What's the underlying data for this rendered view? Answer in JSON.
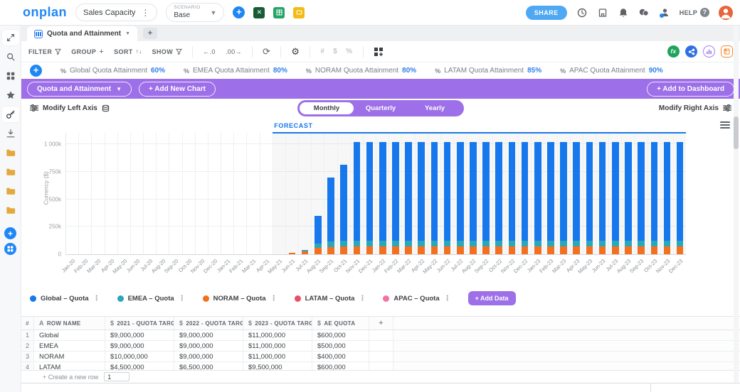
{
  "colors": {
    "accent_purple": "#9d6fe8",
    "accent_blue": "#1f87f5",
    "kpi_value_blue": "#2f80ed",
    "forecast_blue": "#1678ec",
    "share_blue": "#4fa8f2",
    "avatar_orange": "#e8643c",
    "folder_yellow": "#e3a93c"
  },
  "header": {
    "logo": "onplan",
    "module_name": "Sales Capacity",
    "scenario_label": "SCENARIO",
    "scenario_value": "Base",
    "share_label": "SHARE",
    "help_label": "HELP",
    "icons": [
      "add",
      "excel",
      "sheets",
      "slides",
      "history",
      "marketplace",
      "bell",
      "chat",
      "whats-new",
      "help",
      "avatar"
    ]
  },
  "sidebar": {
    "items": [
      {
        "icon": "expand",
        "active": true
      },
      {
        "icon": "search",
        "active": false
      },
      {
        "icon": "dashboard",
        "active": false
      },
      {
        "icon": "star",
        "active": false
      },
      {
        "icon": "key",
        "active": true
      },
      {
        "icon": "download",
        "active": false
      },
      {
        "icon": "folder",
        "active": false
      },
      {
        "icon": "folder",
        "active": false
      },
      {
        "icon": "folder",
        "active": false
      },
      {
        "icon": "folder",
        "active": false
      },
      {
        "icon": "add-circle",
        "active": false
      },
      {
        "icon": "apps-circle",
        "active": false
      }
    ]
  },
  "tabs": {
    "active": "Quota and Attainment",
    "add_label": "+"
  },
  "toolbar": {
    "filter": "FILTER",
    "group": "GROUP",
    "sort": "SORT",
    "show": "SHOW",
    "decimal_decrease": "←.0",
    "decimal_increase": ".00→",
    "disabled_formats": [
      "#",
      "$",
      "%"
    ],
    "right_icons": [
      "fx",
      "integrations",
      "chart",
      "pivot"
    ]
  },
  "kpis": [
    {
      "icon": "%",
      "label": "Global Quota Attainment",
      "value": "60%"
    },
    {
      "icon": "%",
      "label": "EMEA Quota Attainment",
      "value": "80%"
    },
    {
      "icon": "%",
      "label": "NORAM Quota Attainment",
      "value": "80%"
    },
    {
      "icon": "%",
      "label": "LATAM Quota Attainment",
      "value": "85%"
    },
    {
      "icon": "%",
      "label": "APAC Quota Attainment",
      "value": "90%"
    }
  ],
  "chart_bar": {
    "selector_label": "Quota and Attainment",
    "add_chart_label": "+ Add New Chart",
    "add_dashboard_label": "+ Add to Dashboard"
  },
  "axis_controls": {
    "left_label": "Modify Left Axis",
    "right_label": "Modify Right Axis",
    "period_options": [
      "Monthly",
      "Quarterly",
      "Yearly"
    ],
    "period_selected": "Monthly"
  },
  "chart_data": {
    "type": "bar",
    "stacked": true,
    "forecast_label": "FORECAST",
    "forecast_start_index": 16,
    "ylabel": "Currency ($)",
    "ylim": [
      0,
      1050
    ],
    "yticks": {
      "values": [
        0,
        250,
        500,
        750,
        1000
      ],
      "labels": [
        "0",
        "250k",
        "500k",
        "750k",
        "1 000k"
      ]
    },
    "unit": "thousands of $",
    "categories": [
      "Jan-20",
      "Feb-20",
      "Mar-20",
      "Apr-20",
      "May-20",
      "Jun-20",
      "Jul-20",
      "Aug-20",
      "Sep-20",
      "Oct-20",
      "Nov-20",
      "Dec-20",
      "Jan-21",
      "Feb-21",
      "Mar-21",
      "Apr-21",
      "May-21",
      "Jun-21",
      "Jul-21",
      "Aug-21",
      "Sep-21",
      "Oct-21",
      "Nov-21",
      "Dec-21",
      "Jan-22",
      "Feb-22",
      "Mar-22",
      "Apr-22",
      "May-22",
      "Jun-22",
      "Jul-22",
      "Aug-22",
      "Sep-22",
      "Oct-22",
      "Nov-22",
      "Dec-22",
      "Jan-23",
      "Feb-23",
      "Mar-23",
      "Apr-23",
      "May-23",
      "Jun-23",
      "Jul-23",
      "Aug-23",
      "Sep-23",
      "Oct-23",
      "Nov-23",
      "Dec-23"
    ],
    "series": [
      {
        "name": "Global – Quota",
        "color": "#1678ec",
        "values": [
          0,
          0,
          0,
          0,
          0,
          0,
          0,
          0,
          0,
          0,
          0,
          0,
          0,
          0,
          0,
          0,
          0,
          0,
          0,
          250,
          585,
          690,
          895,
          895,
          895,
          895,
          895,
          895,
          895,
          895,
          895,
          895,
          895,
          895,
          895,
          895,
          895,
          895,
          895,
          895,
          895,
          895,
          895,
          895,
          895,
          895,
          895,
          895
        ]
      },
      {
        "name": "EMEA – Quota",
        "color": "#2aa7ba",
        "values": [
          0,
          0,
          0,
          0,
          0,
          0,
          0,
          0,
          0,
          0,
          0,
          0,
          0,
          0,
          0,
          0,
          0,
          0,
          15,
          45,
          50,
          55,
          55,
          55,
          55,
          55,
          55,
          55,
          55,
          55,
          55,
          55,
          55,
          55,
          55,
          55,
          55,
          55,
          55,
          55,
          55,
          55,
          55,
          55,
          55,
          55,
          55,
          55
        ]
      },
      {
        "name": "NORAM – Quota",
        "color": "#f4701e",
        "values": [
          0,
          0,
          0,
          0,
          0,
          0,
          0,
          0,
          0,
          0,
          0,
          0,
          0,
          0,
          0,
          0,
          0,
          15,
          25,
          55,
          65,
          70,
          70,
          70,
          70,
          70,
          70,
          70,
          70,
          70,
          70,
          70,
          70,
          70,
          70,
          70,
          70,
          70,
          70,
          70,
          70,
          70,
          70,
          70,
          70,
          70,
          70,
          70
        ]
      },
      {
        "name": "LATAM – Quota",
        "color": "#e94f66",
        "values": [
          0,
          0,
          0,
          0,
          0,
          0,
          0,
          0,
          0,
          0,
          0,
          0,
          0,
          0,
          0,
          0,
          0,
          0,
          0,
          0,
          0,
          0,
          0,
          0,
          0,
          0,
          0,
          0,
          0,
          0,
          0,
          0,
          0,
          0,
          0,
          0,
          0,
          0,
          0,
          0,
          0,
          0,
          0,
          0,
          0,
          0,
          0,
          0
        ]
      },
      {
        "name": "APAC – Quota",
        "color": "#f272a3",
        "values": [
          0,
          0,
          0,
          0,
          0,
          0,
          0,
          0,
          0,
          0,
          0,
          0,
          0,
          0,
          0,
          0,
          0,
          0,
          0,
          0,
          0,
          0,
          0,
          0,
          0,
          0,
          0,
          0,
          0,
          0,
          0,
          0,
          0,
          0,
          0,
          0,
          0,
          0,
          0,
          0,
          0,
          0,
          0,
          0,
          0,
          0,
          0,
          0
        ]
      }
    ],
    "stack_order": [
      2,
      1,
      0,
      3,
      4
    ],
    "legend_position": "bottom"
  },
  "legend_add": {
    "label": "+ Add Data"
  },
  "table": {
    "columns": [
      {
        "label": "#",
        "icon": ""
      },
      {
        "label": "ROW NAME",
        "icon": "A"
      },
      {
        "label": "2021 - QUOTA TARGET",
        "icon": "$"
      },
      {
        "label": "2022 - QUOTA TARGET",
        "icon": "$"
      },
      {
        "label": "2023 - QUOTA TARGET",
        "icon": "$"
      },
      {
        "label": "AE QUOTA",
        "icon": "$"
      }
    ],
    "add_column_label": "+",
    "rows": [
      [
        "1",
        "Global",
        "$9,000,000",
        "$9,000,000",
        "$11,000,000",
        "$600,000"
      ],
      [
        "2",
        "EMEA",
        "$9,000,000",
        "$9,000,000",
        "$11,000,000",
        "$500,000"
      ],
      [
        "3",
        "NORAM",
        "$10,000,000",
        "$9,000,000",
        "$11,000,000",
        "$400,000"
      ],
      [
        "4",
        "LATAM",
        "$4,500,000",
        "$6,500,000",
        "$9,500,000",
        "$600,000"
      ]
    ]
  },
  "create_row": {
    "label": "+ Create a new row",
    "input_value": "1"
  }
}
